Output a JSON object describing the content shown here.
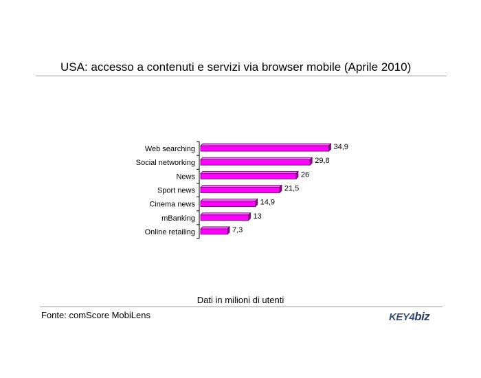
{
  "chart_data": {
    "type": "bar",
    "orientation": "horizontal",
    "title": "USA: accesso a contenuti e servizi via browser mobile (Aprile 2010)",
    "categories": [
      "Web searching",
      "Social networking",
      "News",
      "Sport news",
      "Cinema news",
      "mBanking",
      "Online retailing"
    ],
    "values": [
      34.9,
      29.8,
      26,
      21.5,
      14.9,
      13,
      7.3
    ],
    "value_labels": [
      "34,9",
      "29,8",
      "26",
      "21,5",
      "14,9",
      "13",
      "7,3"
    ],
    "xlim": [
      0,
      35
    ],
    "grid": false,
    "legend": "none",
    "bar_color": "#ff00ff",
    "bar_edge_color": "#660066",
    "footnote": "Dati in milioni di utenti"
  },
  "source": "Fonte: comScore MobiLens",
  "logo": {
    "part1": "KEY4",
    "part2": "biz"
  }
}
